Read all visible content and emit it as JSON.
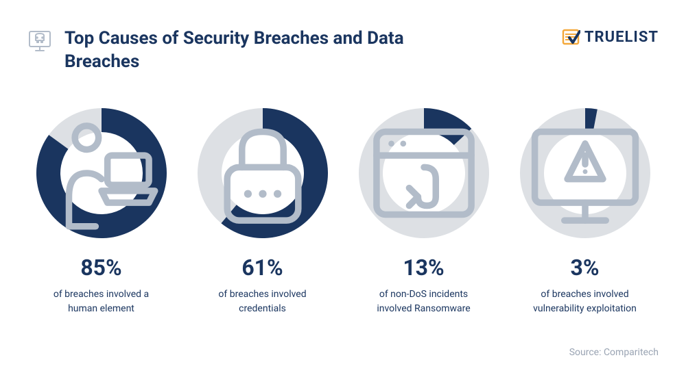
{
  "title": "Top Causes of Security Breaches and Data Breaches",
  "logo_text": "TRUELIST",
  "source": "Source: Comparitech",
  "colors": {
    "dark_blue": "#1a355f",
    "light_gray": "#dde0e4",
    "icon_gray": "#b2bcc9",
    "text_gray": "#9aa4b3",
    "orange": "#f4a83a",
    "background": "#ffffff"
  },
  "donut": {
    "outer_radius": 95,
    "inner_radius": 60
  },
  "stats": [
    {
      "value": 85,
      "label": "85%",
      "desc": "of breaches involved a human element",
      "icon": "person-laptop-icon"
    },
    {
      "value": 61,
      "label": "61%",
      "desc": "of breaches involved credentials",
      "icon": "lock-icon"
    },
    {
      "value": 13,
      "label": "13%",
      "desc": "of non-DoS incidents involved Ransomware",
      "icon": "phishing-icon"
    },
    {
      "value": 3,
      "label": "3%",
      "desc": "of breaches involved vulnerability exploitation",
      "icon": "alert-monitor-icon"
    }
  ]
}
